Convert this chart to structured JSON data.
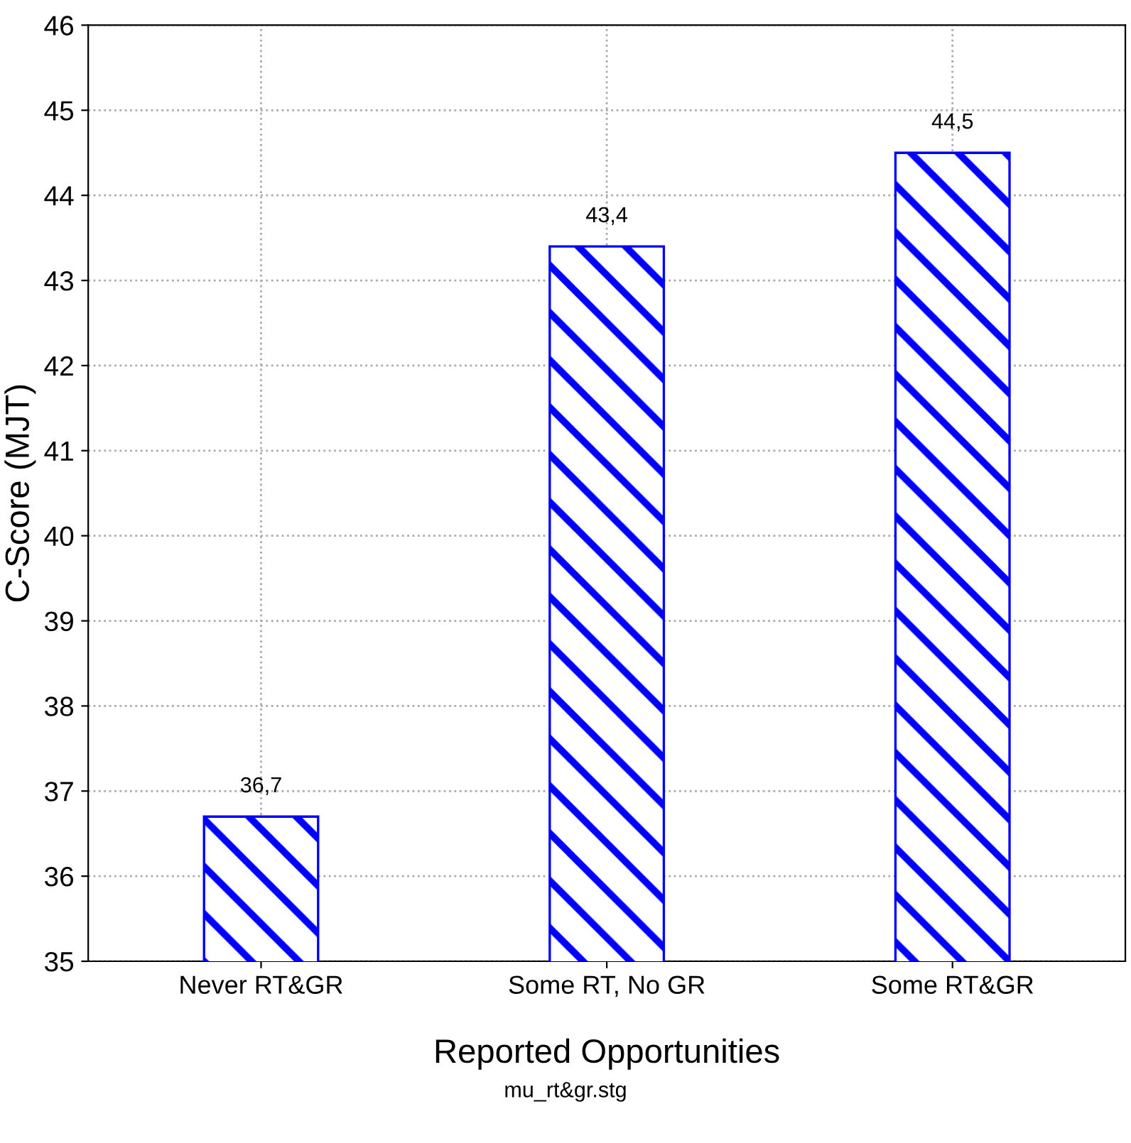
{
  "chart_data": {
    "type": "bar",
    "xlabel": "Reported Opportunities",
    "ylabel": "C-Score (MJT)",
    "categories": [
      "Never RT&GR",
      "Some RT, No GR",
      "Some RT&GR"
    ],
    "values": [
      36.7,
      43.4,
      44.5
    ],
    "value_labels": [
      "36,7",
      "43,4",
      "44,5"
    ],
    "color": "#0000ff",
    "ylim": [
      35,
      46
    ],
    "yticks": [
      35,
      36,
      37,
      38,
      39,
      40,
      41,
      42,
      43,
      44,
      45,
      46
    ],
    "grid": true,
    "annotations": [
      "mu_rt&gr.stg"
    ]
  }
}
